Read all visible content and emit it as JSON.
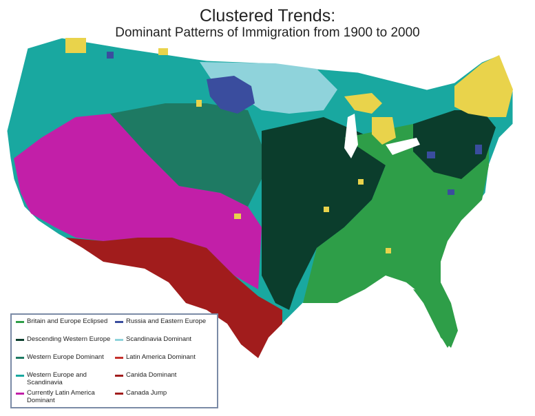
{
  "title": "Clustered Trends:",
  "subtitle": "Dominant Patterns of Immigration from 1900 to 2000",
  "legend": {
    "left": [
      {
        "label": "Britain and Europe Eclipsed",
        "color": "#2e9e48"
      },
      {
        "label": "Descending Western Europe",
        "color": "#0b3d2c"
      },
      {
        "label": "Western Europe Dominant",
        "color": "#1e7a63"
      },
      {
        "label": "Western Europe and Scandinavia",
        "color": "#19a8a0"
      },
      {
        "label": "Currently Latin America Dominant",
        "color": "#c21fa8"
      }
    ],
    "right": [
      {
        "label": "Russia and Eastern Europe",
        "color": "#3a4d9e"
      },
      {
        "label": "Scandinavia Dominant",
        "color": "#8fd3db"
      },
      {
        "label": "Latin America Dominant",
        "color": "#c4312c"
      },
      {
        "label": "Canida Dominant",
        "color": "#a11c1c"
      },
      {
        "label": "Canada Jump",
        "color": "#a11c1c"
      }
    ]
  },
  "colors": {
    "yellow": "#e9d34b",
    "border": "#7a8aa6"
  }
}
